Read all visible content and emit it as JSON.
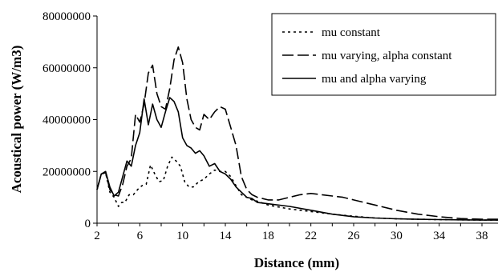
{
  "chart_data": {
    "type": "line",
    "title": "",
    "xlabel": "Distance (mm)",
    "ylabel": "Acoustical power (W/m3)",
    "xlim": [
      2,
      39.5
    ],
    "ylim": [
      0,
      80000000
    ],
    "x_ticks": [
      "2",
      "6",
      "10",
      "14",
      "18",
      "22",
      "26",
      "30",
      "34",
      "38"
    ],
    "y_ticks": [
      "0",
      "20000000",
      "40000000",
      "60000000",
      "80000000"
    ],
    "grid": false,
    "legend_position": "top-right",
    "series": [
      {
        "name": "mu constant",
        "style": "dotted",
        "x": [
          2,
          2.4,
          2.8,
          3.2,
          3.6,
          4.0,
          4.3,
          4.6,
          5.0,
          5.4,
          5.8,
          6.2,
          6.6,
          7.0,
          7.4,
          7.8,
          8.2,
          8.6,
          9.0,
          9.4,
          9.8,
          10.2,
          10.6,
          11.0,
          11.5,
          12.0,
          12.5,
          13.0,
          13.5,
          14.0,
          14.5,
          15.0,
          15.5,
          16.0,
          16.5,
          17.0,
          18,
          20,
          22,
          24,
          26,
          28,
          30,
          32,
          34,
          36,
          38,
          39.5
        ],
        "y": [
          13000000,
          19000000,
          19500000,
          12000000,
          10000000,
          6500000,
          8000000,
          8000000,
          11000000,
          11000000,
          13000000,
          14500000,
          15000000,
          22500000,
          19000000,
          16000000,
          16500000,
          22000000,
          25500000,
          24000000,
          22000000,
          16000000,
          14000000,
          14000000,
          16000000,
          17000000,
          19000000,
          20500000,
          20000000,
          20000000,
          18000000,
          14500000,
          11000000,
          10000000,
          9000000,
          8500000,
          7000000,
          5500000,
          4500000,
          3500000,
          2700000,
          2000000,
          1700000,
          1500000,
          1400000,
          1300000,
          1200000,
          1200000
        ]
      },
      {
        "name": "mu varying, alpha constant",
        "style": "dashed",
        "x": [
          2,
          2.4,
          2.8,
          3.2,
          3.6,
          4.0,
          4.4,
          4.8,
          5.2,
          5.6,
          6.0,
          6.4,
          6.8,
          7.2,
          7.6,
          8.0,
          8.4,
          8.8,
          9.2,
          9.6,
          10.0,
          10.4,
          10.8,
          11.2,
          11.6,
          12.0,
          12.5,
          13.0,
          13.5,
          14.0,
          14.5,
          15.0,
          15.5,
          16.0,
          16.5,
          17.0,
          18,
          19,
          20,
          21,
          22,
          23,
          24,
          25,
          26,
          28,
          30,
          32,
          34,
          36,
          38,
          39.5
        ],
        "y": [
          13000000,
          19000000,
          19500000,
          13000000,
          11000000,
          10500000,
          15000000,
          22000000,
          25000000,
          42000000,
          39000000,
          46000000,
          58000000,
          61000000,
          50000000,
          45000000,
          44000000,
          52000000,
          63000000,
          68000000,
          62000000,
          48000000,
          40000000,
          37000000,
          36000000,
          42000000,
          40000000,
          43000000,
          45000000,
          44000000,
          37000000,
          30000000,
          18000000,
          13000000,
          11000000,
          10000000,
          9000000,
          9000000,
          10000000,
          11000000,
          11500000,
          11000000,
          10500000,
          10000000,
          9000000,
          7000000,
          5000000,
          3500000,
          2500000,
          1800000,
          1500000,
          1500000
        ]
      },
      {
        "name": "mu and alpha varying",
        "style": "solid",
        "x": [
          2,
          2.4,
          2.8,
          3.2,
          3.6,
          4.0,
          4.4,
          4.8,
          5.2,
          5.6,
          6.0,
          6.4,
          6.8,
          7.2,
          7.6,
          8.0,
          8.4,
          8.8,
          9.2,
          9.6,
          10.0,
          10.4,
          10.8,
          11.2,
          11.6,
          12.0,
          12.5,
          13.0,
          13.5,
          14.0,
          14.5,
          15.0,
          15.5,
          16.0,
          16.5,
          17.0,
          18,
          20,
          22,
          24,
          26,
          28,
          30,
          32,
          34,
          36,
          38,
          39.5
        ],
        "y": [
          13000000,
          19000000,
          20000000,
          14000000,
          10500000,
          12000000,
          18000000,
          24000000,
          22000000,
          30000000,
          35000000,
          48000000,
          38000000,
          46000000,
          40000000,
          37000000,
          43000000,
          48500000,
          47000000,
          43000000,
          33000000,
          30000000,
          29000000,
          27000000,
          28000000,
          26000000,
          22000000,
          23000000,
          20000000,
          19000000,
          17000000,
          14000000,
          12000000,
          10000000,
          9500000,
          8000000,
          7500000,
          6500000,
          5000000,
          3500000,
          2500000,
          2000000,
          1700000,
          1500000,
          1400000,
          1300000,
          1200000,
          1200000
        ]
      }
    ]
  }
}
